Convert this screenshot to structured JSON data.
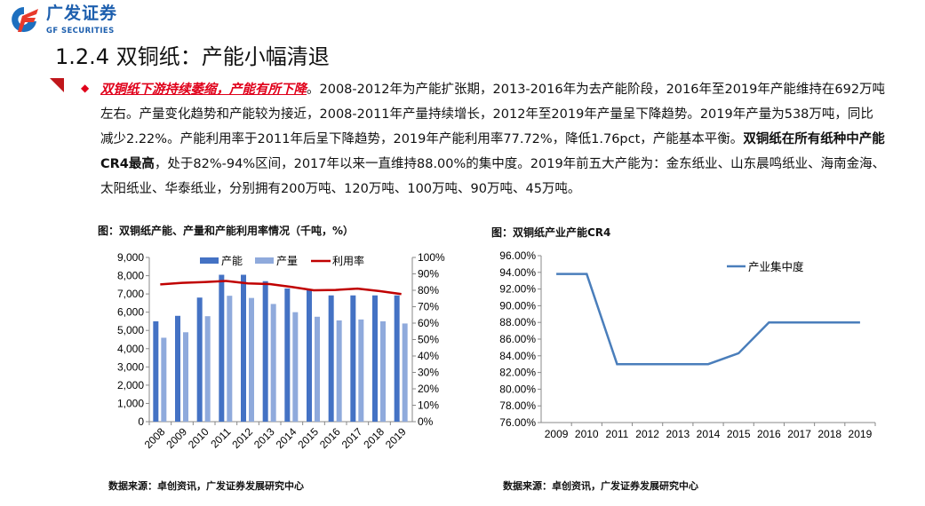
{
  "logo": {
    "name_cn": "广发证券",
    "name_en": "GF SECURITIES"
  },
  "title": "1.2.4 双铜纸：产能小幅清退",
  "paragraph": {
    "highlight": "双铜纸下游持续萎缩，产能有所下降",
    "line1_rest": "。2008-2012年为产能扩张期，2013-2016年为去产能阶段，2016年至2019年产能维持在692万吨",
    "line2": "左右。产量变化趋势和产能较为接近，2008-2011年产量持续增长，2012年至2019年产量呈下降趋势。2019年产量为538万吨，同比",
    "line3_plain": "减少2.22%。产能利用率于2011年后呈下降趋势，2019年产能利用率77.72%，降低1.76pct，产能基本平衡。",
    "line3_bold": "双铜纸在所有纸种中产能",
    "line4_bold": "CR4最高",
    "line4_rest": "，处于82%-94%区间，2017年以来一直维持88.00%的集中度。2019年前五大产能为：金东纸业、山东晨鸣纸业、海南金海、",
    "line5": "太阳纸业、华泰纸业，分别拥有200万吨、120万吨、100万吨、90万吨、45万吨。"
  },
  "chart_data": [
    {
      "type": "bar",
      "title": "图：双铜纸产能、产量和产能利用率情况（千吨，%）",
      "categories": [
        "2008",
        "2009",
        "2010",
        "2011",
        "2012",
        "2013",
        "2014",
        "2015",
        "2016",
        "2017",
        "2018",
        "2019"
      ],
      "series": [
        {
          "name": "产能",
          "type": "bar",
          "axis": "left",
          "color": "#4472c4",
          "values": [
            5500,
            5800,
            6800,
            8050,
            8050,
            7700,
            7300,
            7200,
            6920,
            6920,
            6920,
            6920
          ]
        },
        {
          "name": "产量",
          "type": "bar",
          "axis": "left",
          "color": "#8faadc",
          "values": [
            4600,
            4900,
            5780,
            6900,
            6780,
            6450,
            6000,
            5750,
            5550,
            5600,
            5500,
            5380
          ]
        },
        {
          "name": "利用率",
          "type": "line",
          "axis": "right",
          "color": "#c00000",
          "values": [
            83.6,
            84.5,
            85.0,
            85.7,
            84.2,
            83.8,
            82.0,
            80.0,
            80.2,
            81.0,
            79.5,
            77.7
          ]
        }
      ],
      "ylim": [
        0,
        9000
      ],
      "yticks": [
        "0",
        "1,000",
        "2,000",
        "3,000",
        "4,000",
        "5,000",
        "6,000",
        "7,000",
        "8,000",
        "9,000"
      ],
      "y2lim": [
        0,
        100
      ],
      "y2ticks": [
        "0%",
        "10%",
        "20%",
        "30%",
        "40%",
        "50%",
        "60%",
        "70%",
        "80%",
        "90%",
        "100%"
      ],
      "legend": "top",
      "grid": false,
      "source": "数据来源：卓创资讯，广发证券发展研究中心"
    },
    {
      "type": "line",
      "title": "图：双铜纸产业产能CR4",
      "categories": [
        "2009",
        "2010",
        "2011",
        "2012",
        "2013",
        "2014",
        "2015",
        "2016",
        "2017",
        "2018",
        "2019"
      ],
      "series": [
        {
          "name": "产业集中度",
          "color": "#4a7ebb",
          "values": [
            93.8,
            93.8,
            83.0,
            83.0,
            83.0,
            83.0,
            84.3,
            88.0,
            88.0,
            88.0,
            88.0
          ]
        }
      ],
      "ylim": [
        76,
        96
      ],
      "yticks": [
        "76.00%",
        "78.00%",
        "80.00%",
        "82.00%",
        "84.00%",
        "86.00%",
        "88.00%",
        "90.00%",
        "92.00%",
        "94.00%",
        "96.00%"
      ],
      "legend": "top-right",
      "grid": false,
      "source": "数据来源：卓创资讯，广发证券发展研究中心"
    }
  ]
}
